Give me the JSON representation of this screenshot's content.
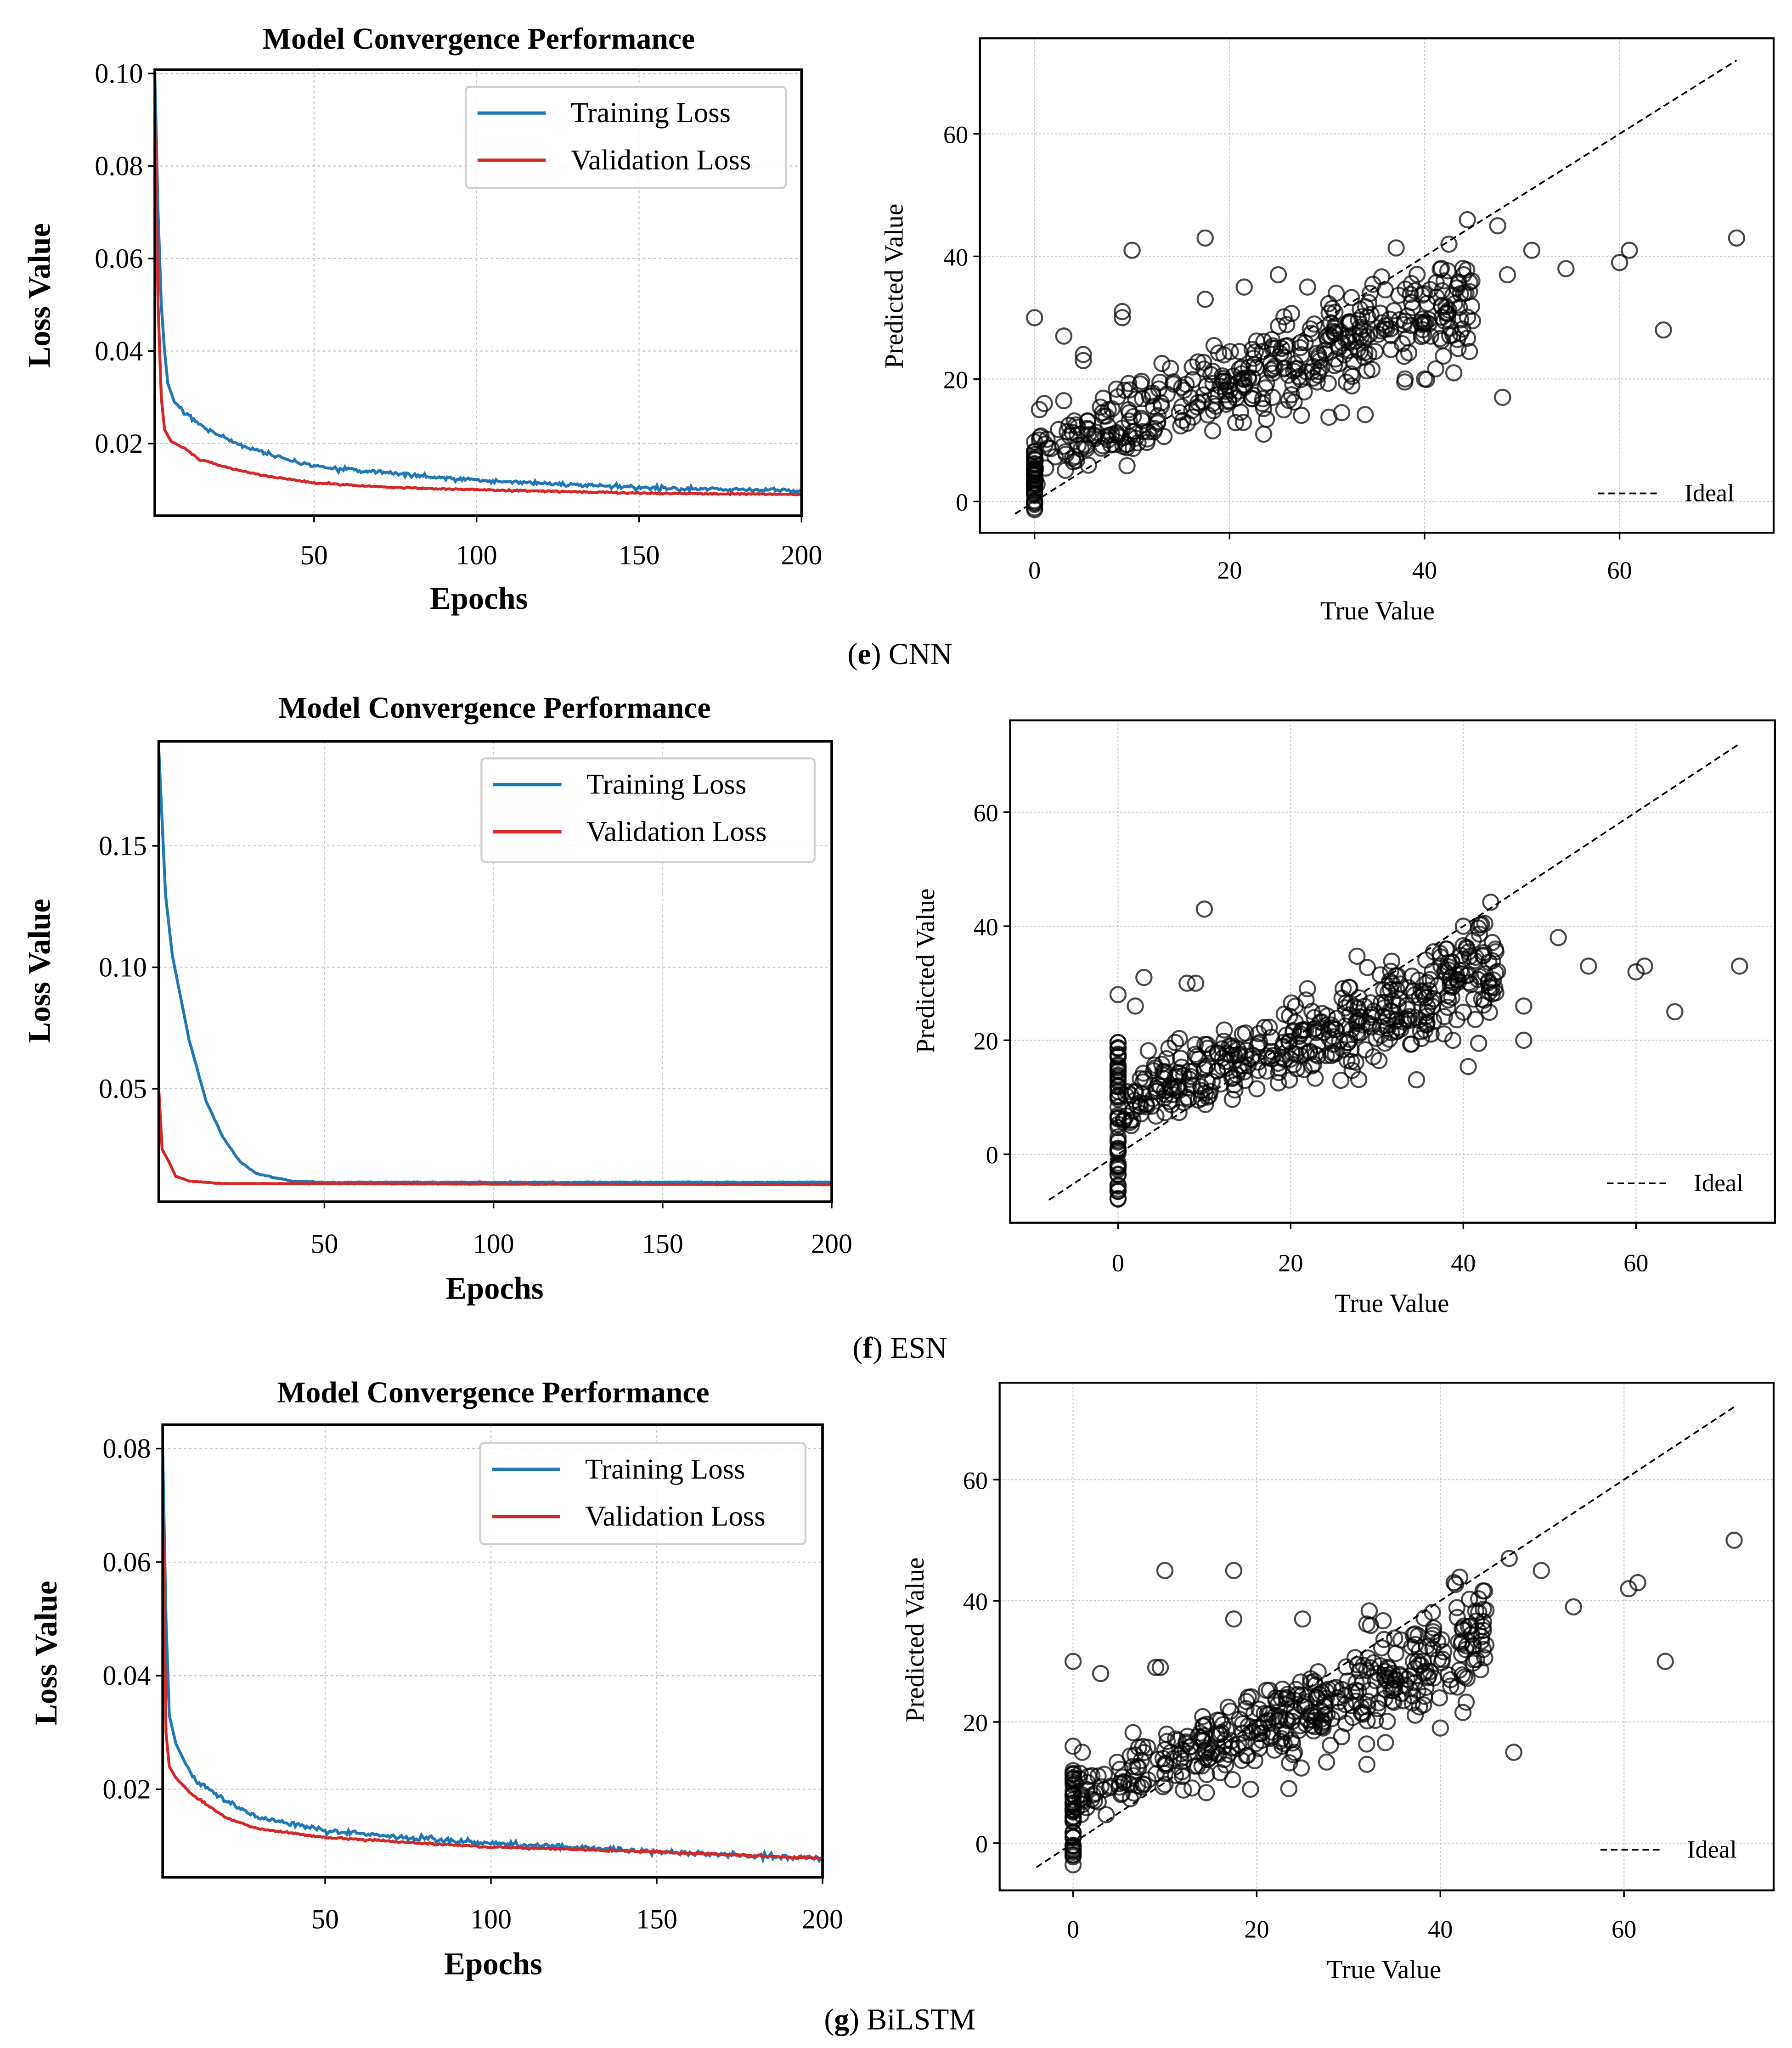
{
  "captions": [
    {
      "letter": "e",
      "name": "CNN"
    },
    {
      "letter": "f",
      "name": "ESN"
    },
    {
      "letter": "g",
      "name": "BiLSTM"
    }
  ],
  "chart_data": [
    {
      "panel": "e",
      "type": "line",
      "title": "Model Convergence Performance",
      "xlabel": "Epochs",
      "ylabel": "Loss Value",
      "xlim": [
        1,
        200
      ],
      "ylim": [
        0.0044,
        0.1008
      ],
      "grid": true,
      "legend": "top-right",
      "xticks": [
        {
          "v": 50,
          "label": "50"
        },
        {
          "v": 100,
          "label": "100"
        },
        {
          "v": 150,
          "label": "150"
        },
        {
          "v": 200,
          "label": "200"
        }
      ],
      "yticks": [
        {
          "v": 0.02,
          "label": "0.02"
        },
        {
          "v": 0.04,
          "label": "0.04"
        },
        {
          "v": 0.06,
          "label": "0.06"
        },
        {
          "v": 0.08,
          "label": "0.08"
        },
        {
          "v": 0.1,
          "label": "0.10"
        }
      ],
      "series": [
        {
          "name": "Training Loss",
          "color": "#1f77b4",
          "points": [
            [
              1,
              0.1
            ],
            [
              2,
              0.07
            ],
            [
              3,
              0.05
            ],
            [
              4,
              0.04
            ],
            [
              5,
              0.033
            ],
            [
              7,
              0.029
            ],
            [
              10,
              0.027
            ],
            [
              15,
              0.024
            ],
            [
              20,
              0.022
            ],
            [
              30,
              0.019
            ],
            [
              40,
              0.017
            ],
            [
              50,
              0.015
            ],
            [
              75,
              0.0135
            ],
            [
              100,
              0.012
            ],
            [
              150,
              0.0105
            ],
            [
              200,
              0.0098
            ]
          ]
        },
        {
          "name": "Validation Loss",
          "color": "#d62728",
          "points": [
            [
              1,
              0.09
            ],
            [
              2,
              0.05
            ],
            [
              3,
              0.03
            ],
            [
              4,
              0.023
            ],
            [
              6,
              0.0205
            ],
            [
              10,
              0.019
            ],
            [
              15,
              0.0165
            ],
            [
              25,
              0.0145
            ],
            [
              35,
              0.013
            ],
            [
              50,
              0.0115
            ],
            [
              75,
              0.0105
            ],
            [
              100,
              0.01
            ],
            [
              150,
              0.0093
            ],
            [
              200,
              0.009
            ]
          ]
        }
      ]
    },
    {
      "panel": "e",
      "type": "scatter",
      "xlabel": "True Value",
      "ylabel": "Predicted Value",
      "xlim": [
        -5.6,
        75.8
      ],
      "ylim": [
        -5.1,
        75.6
      ],
      "grid": true,
      "legend": "bottom-right",
      "xticks": [
        {
          "v": 0,
          "label": "0"
        },
        {
          "v": 20,
          "label": "20"
        },
        {
          "v": 40,
          "label": "40"
        },
        {
          "v": 60,
          "label": "60"
        }
      ],
      "yticks": [
        {
          "v": 0,
          "label": "0"
        },
        {
          "v": 20,
          "label": "20"
        },
        {
          "v": 40,
          "label": "40"
        },
        {
          "v": 60,
          "label": "60"
        }
      ],
      "ideal": {
        "label": "Ideal",
        "range": [
          -2,
          72
        ]
      },
      "points": [
        [
          0,
          30
        ],
        [
          3,
          27
        ],
        [
          5,
          24
        ],
        [
          5,
          23
        ],
        [
          9,
          31
        ],
        [
          9,
          30
        ],
        [
          10,
          41
        ],
        [
          17.5,
          43
        ],
        [
          17.5,
          33
        ],
        [
          25,
          37
        ],
        [
          21.5,
          35
        ],
        [
          28,
          35
        ],
        [
          47.5,
          45
        ],
        [
          51,
          41
        ],
        [
          54.5,
          38
        ],
        [
          60,
          39
        ],
        [
          61,
          41
        ],
        [
          64.5,
          28
        ],
        [
          72,
          43
        ],
        [
          48,
          17
        ],
        [
          42.5,
          42
        ],
        [
          44,
          37
        ],
        [
          48.5,
          37
        ],
        [
          42,
          36
        ],
        [
          31.5,
          14.5
        ],
        [
          23.5,
          11
        ],
        [
          38,
          20
        ],
        [
          40,
          20
        ],
        [
          43,
          21
        ],
        [
          0.5,
          15
        ],
        [
          1,
          16
        ]
      ],
      "bulk": {
        "n": 420,
        "slope": 0.55,
        "intercept": 8,
        "noise": 3.8,
        "xmax": 45,
        "zero_n": 40,
        "zero_range": [
          -2,
          10
        ],
        "seed": 11
      }
    },
    {
      "panel": "f",
      "type": "line",
      "title": "Model Convergence Performance",
      "xlabel": "Epochs",
      "ylabel": "Loss Value",
      "xlim": [
        1,
        200
      ],
      "ylim": [
        0.0035,
        0.193
      ],
      "grid": true,
      "legend": "top-right",
      "xticks": [
        {
          "v": 50,
          "label": "50"
        },
        {
          "v": 100,
          "label": "100"
        },
        {
          "v": 150,
          "label": "150"
        },
        {
          "v": 200,
          "label": "200"
        }
      ],
      "yticks": [
        {
          "v": 0.05,
          "label": "0.05"
        },
        {
          "v": 0.1,
          "label": "0.10"
        },
        {
          "v": 0.15,
          "label": "0.15"
        }
      ],
      "series": [
        {
          "name": "Training Loss",
          "color": "#1f77b4",
          "points": [
            [
              1,
              0.19
            ],
            [
              3,
              0.13
            ],
            [
              5,
              0.105
            ],
            [
              10,
              0.07
            ],
            [
              15,
              0.045
            ],
            [
              20,
              0.03
            ],
            [
              25,
              0.02
            ],
            [
              30,
              0.015
            ],
            [
              40,
              0.012
            ],
            [
              50,
              0.0115
            ],
            [
              200,
              0.0115
            ]
          ]
        },
        {
          "name": "Validation Loss",
          "color": "#d62728",
          "points": [
            [
              1,
              0.05
            ],
            [
              2,
              0.025
            ],
            [
              4,
              0.02
            ],
            [
              6,
              0.014
            ],
            [
              10,
              0.012
            ],
            [
              20,
              0.011
            ],
            [
              200,
              0.0105
            ]
          ]
        }
      ]
    },
    {
      "panel": "f",
      "type": "scatter",
      "xlabel": "True Value",
      "ylabel": "Predicted Value",
      "xlim": [
        -12.5,
        76.1
      ],
      "ylim": [
        -12,
        76.1
      ],
      "grid": true,
      "legend": "bottom-right",
      "xticks": [
        {
          "v": 0,
          "label": "0"
        },
        {
          "v": 20,
          "label": "20"
        },
        {
          "v": 40,
          "label": "40"
        },
        {
          "v": 60,
          "label": "60"
        }
      ],
      "yticks": [
        {
          "v": 0,
          "label": "0"
        },
        {
          "v": 20,
          "label": "20"
        },
        {
          "v": 40,
          "label": "40"
        },
        {
          "v": 60,
          "label": "60"
        }
      ],
      "ideal": {
        "label": "Ideal",
        "range": [
          -8,
          72
        ]
      },
      "points": [
        [
          10,
          43
        ],
        [
          0,
          28
        ],
        [
          40,
          40
        ],
        [
          51,
          38
        ],
        [
          54.5,
          33
        ],
        [
          60,
          32
        ],
        [
          61,
          33
        ],
        [
          64.5,
          25
        ],
        [
          72,
          33
        ],
        [
          47,
          26
        ],
        [
          47,
          20
        ],
        [
          3,
          31
        ],
        [
          8,
          30
        ],
        [
          9,
          30
        ],
        [
          2,
          26
        ],
        [
          38,
          36
        ]
      ],
      "bulk": {
        "n": 430,
        "slope": 0.5,
        "intercept": 9,
        "noise": 4.2,
        "xmax": 44,
        "zero_n": 60,
        "zero_range": [
          -8,
          20
        ],
        "seed": 23
      }
    },
    {
      "panel": "g",
      "type": "line",
      "title": "Model Convergence Performance",
      "xlabel": "Epochs",
      "ylabel": "Loss Value",
      "xlim": [
        1,
        200
      ],
      "ylim": [
        0.0045,
        0.0842
      ],
      "grid": true,
      "legend": "top-right",
      "xticks": [
        {
          "v": 50,
          "label": "50"
        },
        {
          "v": 100,
          "label": "100"
        },
        {
          "v": 150,
          "label": "150"
        },
        {
          "v": 200,
          "label": "200"
        }
      ],
      "yticks": [
        {
          "v": 0.02,
          "label": "0.02"
        },
        {
          "v": 0.04,
          "label": "0.04"
        },
        {
          "v": 0.06,
          "label": "0.06"
        },
        {
          "v": 0.08,
          "label": "0.08"
        }
      ],
      "series": [
        {
          "name": "Training Loss",
          "color": "#1f77b4",
          "points": [
            [
              1,
              0.08
            ],
            [
              2,
              0.05
            ],
            [
              3,
              0.033
            ],
            [
              5,
              0.028
            ],
            [
              10,
              0.022
            ],
            [
              20,
              0.018
            ],
            [
              30,
              0.015
            ],
            [
              50,
              0.0128
            ],
            [
              75,
              0.0115
            ],
            [
              100,
              0.0105
            ],
            [
              150,
              0.009
            ],
            [
              200,
              0.0078
            ]
          ]
        },
        {
          "name": "Validation Loss",
          "color": "#d62728",
          "points": [
            [
              1,
              0.07
            ],
            [
              2,
              0.03
            ],
            [
              3,
              0.024
            ],
            [
              5,
              0.022
            ],
            [
              10,
              0.019
            ],
            [
              20,
              0.015
            ],
            [
              30,
              0.013
            ],
            [
              50,
              0.0115
            ],
            [
              100,
              0.0098
            ],
            [
              150,
              0.009
            ],
            [
              200,
              0.0078
            ]
          ]
        }
      ]
    },
    {
      "panel": "g",
      "type": "scatter",
      "xlabel": "True Value",
      "ylabel": "Predicted Value",
      "xlim": [
        -8,
        76.3
      ],
      "ylim": [
        -7.8,
        76
      ],
      "grid": true,
      "legend": "bottom-right",
      "xticks": [
        {
          "v": 0,
          "label": "0"
        },
        {
          "v": 20,
          "label": "20"
        },
        {
          "v": 40,
          "label": "40"
        },
        {
          "v": 60,
          "label": "60"
        }
      ],
      "yticks": [
        {
          "v": 0,
          "label": "0"
        },
        {
          "v": 20,
          "label": "20"
        },
        {
          "v": 40,
          "label": "40"
        },
        {
          "v": 60,
          "label": "60"
        }
      ],
      "ideal": {
        "label": "Ideal",
        "range": [
          -4,
          72
        ]
      },
      "points": [
        [
          0,
          30
        ],
        [
          3,
          28
        ],
        [
          10,
          45
        ],
        [
          17.5,
          45
        ],
        [
          17.5,
          37
        ],
        [
          25,
          37
        ],
        [
          41.5,
          43
        ],
        [
          47.5,
          47
        ],
        [
          51,
          45
        ],
        [
          54.5,
          39
        ],
        [
          60.5,
          42
        ],
        [
          61.5,
          43
        ],
        [
          64.5,
          30
        ],
        [
          72,
          50
        ],
        [
          48,
          15
        ],
        [
          32,
          13
        ],
        [
          23.5,
          9
        ],
        [
          40,
          19
        ],
        [
          9,
          29
        ],
        [
          9.5,
          29
        ],
        [
          0,
          16
        ],
        [
          1,
          15
        ]
      ],
      "bulk": {
        "n": 420,
        "slope": 0.6,
        "intercept": 7,
        "noise": 3.8,
        "xmax": 45,
        "zero_n": 45,
        "zero_range": [
          -4,
          12
        ],
        "seed": 37
      }
    }
  ]
}
